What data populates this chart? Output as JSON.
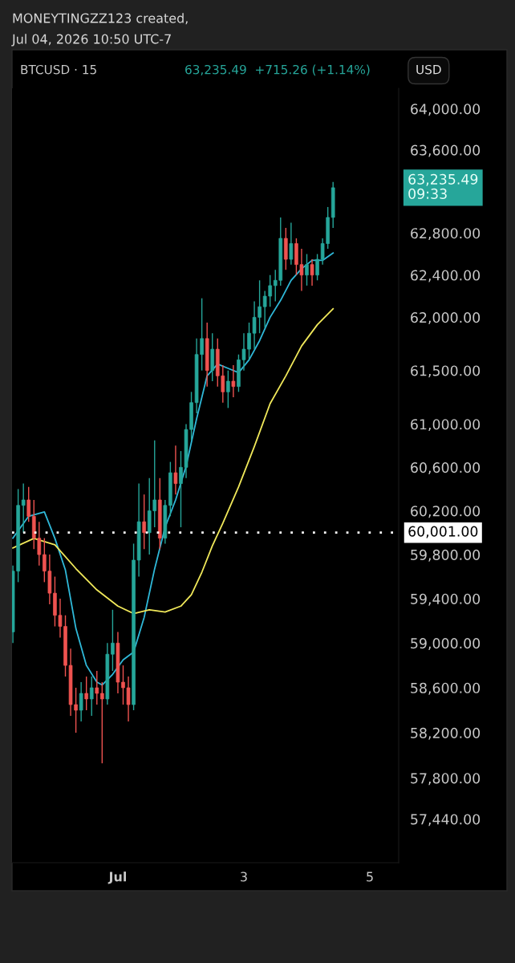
{
  "chart_data": {
    "type": "candlestick",
    "title": "MONEYTINGZZ123 created,",
    "subtitle": "Jul 04, 2026 10:50 UTC-7",
    "annotations": [
      "BTCUSD · 15",
      "63,235.49  +715.26 (+1.14%)",
      "USD",
      "63,235.49\n09:33"
    ],
    "x": [
      "2026-06-29T08:00",
      "2026-06-29T10:00",
      "2026-06-29T12:00",
      "2026-06-29T14:00",
      "2026-06-29T16:00",
      "2026-06-29T18:00",
      "2026-06-29T20:00",
      "2026-06-29T22:00",
      "2026-06-30T00:00",
      "2026-06-30T02:00",
      "2026-06-30T04:00",
      "2026-06-30T06:00",
      "2026-06-30T08:00",
      "2026-06-30T10:00",
      "2026-06-30T12:00",
      "2026-06-30T14:00",
      "2026-06-30T16:00",
      "2026-06-30T18:00",
      "2026-06-30T20:00",
      "2026-06-30T22:00",
      "2026-07-01T00:00",
      "2026-07-01T02:00",
      "2026-07-01T04:00",
      "2026-07-01T06:00",
      "2026-07-01T08:00",
      "2026-07-01T10:00",
      "2026-07-01T12:00",
      "2026-07-01T14:00",
      "2026-07-01T16:00",
      "2026-07-01T18:00",
      "2026-07-01T20:00",
      "2026-07-01T22:00",
      "2026-07-02T00:00",
      "2026-07-02T02:00",
      "2026-07-02T04:00",
      "2026-07-02T06:00",
      "2026-07-02T08:00",
      "2026-07-02T10:00",
      "2026-07-02T12:00",
      "2026-07-02T14:00",
      "2026-07-02T16:00",
      "2026-07-02T18:00",
      "2026-07-02T20:00",
      "2026-07-02T22:00",
      "2026-07-03T00:00",
      "2026-07-03T02:00",
      "2026-07-03T04:00",
      "2026-07-03T06:00",
      "2026-07-03T08:00",
      "2026-07-03T10:00",
      "2026-07-03T12:00",
      "2026-07-03T14:00",
      "2026-07-03T16:00",
      "2026-07-03T18:00",
      "2026-07-03T20:00",
      "2026-07-03T22:00",
      "2026-07-04T00:00",
      "2026-07-04T02:00",
      "2026-07-04T04:00",
      "2026-07-04T06:00",
      "2026-07-04T08:00",
      "2026-07-04T10:00"
    ],
    "ohlc": [
      [
        59100,
        59700,
        59000,
        59650
      ],
      [
        59650,
        60400,
        59550,
        60250
      ],
      [
        60250,
        60450,
        60000,
        60300
      ],
      [
        60300,
        60420,
        60100,
        60150
      ],
      [
        60150,
        60300,
        59850,
        59950
      ],
      [
        59950,
        60100,
        59700,
        59800
      ],
      [
        59800,
        59950,
        59550,
        59650
      ],
      [
        59650,
        59800,
        59350,
        59450
      ],
      [
        59450,
        59600,
        59150,
        59250
      ],
      [
        59250,
        59400,
        59050,
        59150
      ],
      [
        59150,
        59250,
        58700,
        58800
      ],
      [
        58800,
        58950,
        58350,
        58450
      ],
      [
        58450,
        58600,
        58200,
        58400
      ],
      [
        58400,
        58650,
        58300,
        58550
      ],
      [
        58550,
        58700,
        58400,
        58500
      ],
      [
        58500,
        58700,
        58350,
        58600
      ],
      [
        58600,
        58750,
        58450,
        58550
      ],
      [
        58550,
        58650,
        57930,
        58500
      ],
      [
        58500,
        59000,
        58450,
        58900
      ],
      [
        58900,
        59300,
        58750,
        59000
      ],
      [
        59000,
        59100,
        58550,
        58650
      ],
      [
        58650,
        58800,
        58450,
        58600
      ],
      [
        58600,
        58700,
        58300,
        58450
      ],
      [
        58450,
        59900,
        58400,
        59750
      ],
      [
        59750,
        60450,
        59600,
        60100
      ],
      [
        60100,
        60350,
        59850,
        60000
      ],
      [
        60000,
        60500,
        59800,
        60200
      ],
      [
        60200,
        60850,
        60050,
        60300
      ],
      [
        60300,
        60500,
        59850,
        59950
      ],
      [
        59950,
        60300,
        59900,
        60250
      ],
      [
        60250,
        60650,
        60150,
        60550
      ],
      [
        60550,
        60800,
        60350,
        60450
      ],
      [
        60450,
        60750,
        60050,
        60600
      ],
      [
        60600,
        61000,
        60500,
        60950
      ],
      [
        60950,
        61300,
        60850,
        61200
      ],
      [
        61200,
        61800,
        61100,
        61650
      ],
      [
        61650,
        62180,
        61500,
        61800
      ],
      [
        61800,
        61950,
        61350,
        61500
      ],
      [
        61500,
        61850,
        61400,
        61700
      ],
      [
        61700,
        61800,
        61350,
        61450
      ],
      [
        61450,
        61550,
        61200,
        61300
      ],
      [
        61300,
        61500,
        61150,
        61400
      ],
      [
        61400,
        61550,
        61250,
        61350
      ],
      [
        61350,
        61650,
        61300,
        61600
      ],
      [
        61600,
        61850,
        61500,
        61700
      ],
      [
        61700,
        61950,
        61600,
        61850
      ],
      [
        61850,
        62150,
        61700,
        62000
      ],
      [
        62000,
        62350,
        61850,
        62100
      ],
      [
        62100,
        62250,
        61900,
        62200
      ],
      [
        62200,
        62400,
        62100,
        62300
      ],
      [
        62300,
        62450,
        62150,
        62350
      ],
      [
        62350,
        62950,
        62300,
        62750
      ],
      [
        62750,
        62850,
        62450,
        62550
      ],
      [
        62550,
        62900,
        62500,
        62700
      ],
      [
        62700,
        62750,
        62400,
        62500
      ],
      [
        62500,
        62650,
        62250,
        62400
      ],
      [
        62400,
        62600,
        62300,
        62500
      ],
      [
        62500,
        62550,
        62300,
        62400
      ],
      [
        62400,
        62600,
        62350,
        62550
      ],
      [
        62550,
        62750,
        62500,
        62700
      ],
      [
        62700,
        63050,
        62650,
        62950
      ],
      [
        62950,
        63290,
        62850,
        63235.49
      ]
    ],
    "colors": [
      "#26a69a",
      "#26a69a",
      "#26a69a",
      "#ef5350",
      "#ef5350",
      "#ef5350",
      "#ef5350",
      "#ef5350",
      "#ef5350",
      "#ef5350",
      "#ef5350",
      "#ef5350",
      "#ef5350",
      "#26a69a",
      "#ef5350",
      "#26a69a",
      "#ef5350",
      "#ef5350",
      "#26a69a",
      "#26a69a",
      "#ef5350",
      "#ef5350",
      "#ef5350",
      "#26a69a",
      "#26a69a",
      "#ef5350",
      "#26a69a",
      "#26a69a",
      "#ef5350",
      "#26a69a",
      "#26a69a",
      "#ef5350",
      "#26a69a",
      "#26a69a",
      "#26a69a",
      "#26a69a",
      "#26a69a",
      "#ef5350",
      "#26a69a",
      "#ef5350",
      "#ef5350",
      "#26a69a",
      "#ef5350",
      "#26a69a",
      "#26a69a",
      "#26a69a",
      "#26a69a",
      "#26a69a",
      "#26a69a",
      "#26a69a",
      "#26a69a",
      "#26a69a",
      "#ef5350",
      "#26a69a",
      "#ef5350",
      "#ef5350",
      "#26a69a",
      "#ef5350",
      "#26a69a",
      "#26a69a",
      "#26a69a",
      "#26a69a"
    ],
    "series": [
      {
        "type": "line",
        "color": "#2fb8d8",
        "x": [
          "2026-06-29T08:00",
          "2026-06-29T14:00",
          "2026-06-29T20:00",
          "2026-06-30T00:00",
          "2026-06-30T04:00",
          "2026-06-30T08:00",
          "2026-06-30T12:00",
          "2026-06-30T16:00",
          "2026-06-30T18:00",
          "2026-06-30T22:00",
          "2026-07-01T02:00",
          "2026-07-01T06:00",
          "2026-07-01T10:00",
          "2026-07-01T14:00",
          "2026-07-01T18:00",
          "2026-07-01T22:00",
          "2026-07-02T02:00",
          "2026-07-02T06:00",
          "2026-07-02T10:00",
          "2026-07-02T14:00",
          "2026-07-02T18:00",
          "2026-07-02T22:00",
          "2026-07-03T02:00",
          "2026-07-03T06:00",
          "2026-07-03T10:00",
          "2026-07-03T14:00",
          "2026-07-03T18:00",
          "2026-07-03T22:00",
          "2026-07-04T02:00",
          "2026-07-04T06:00",
          "2026-07-04T10:00"
        ],
        "values": [
          59950,
          60150,
          60190,
          59948,
          59660,
          59132,
          58800,
          58650,
          58625,
          58720,
          58850,
          58920,
          59230,
          59670,
          60050,
          60300,
          60610,
          61050,
          61450,
          61560,
          61520,
          61480,
          61600,
          61780,
          62000,
          62160,
          62350,
          62460,
          62540,
          62540,
          62610
        ]
      },
      {
        "type": "line",
        "color": "#f0e85a",
        "x": [
          "2026-06-29T08:00",
          "2026-06-29T16:00",
          "2026-06-30T00:00",
          "2026-06-30T08:00",
          "2026-06-30T16:00",
          "2026-07-01T00:00",
          "2026-07-01T06:00",
          "2026-07-01T12:00",
          "2026-07-01T18:00",
          "2026-07-02T00:00",
          "2026-07-02T04:00",
          "2026-07-02T08:00",
          "2026-07-02T12:00",
          "2026-07-02T16:00",
          "2026-07-02T22:00",
          "2026-07-03T04:00",
          "2026-07-03T10:00",
          "2026-07-03T16:00",
          "2026-07-03T22:00",
          "2026-07-04T04:00",
          "2026-07-04T10:00"
        ],
        "values": [
          59860,
          59948,
          59890,
          59673,
          59480,
          59333,
          59266,
          59300,
          59280,
          59333,
          59435,
          59640,
          59880,
          60087,
          60420,
          60792,
          61190,
          61450,
          61730,
          61930,
          62080
        ]
      }
    ],
    "ref_lines": [
      {
        "axis": "y",
        "value": 60001,
        "label": "60,001.00",
        "color": "#ffffff",
        "line_style": "dotted"
      }
    ],
    "log": true,
    "xlim": [
      "2026-06-29T07:40",
      "2026-07-05T11:00"
    ],
    "xticks": [
      {
        "value": "2026-07-01",
        "label": "Jul"
      },
      {
        "value": "2026-07-03",
        "label": "3"
      },
      {
        "value": "2026-07-05",
        "label": "5"
      }
    ],
    "ylim": [
      57060,
      64200
    ],
    "yticks": [
      {
        "value": 64000,
        "label": "64,000.00"
      },
      {
        "value": 63600,
        "label": "63,600.00"
      },
      {
        "value": 62800,
        "label": "62,800.00"
      },
      {
        "value": 62400,
        "label": "62,400.00"
      },
      {
        "value": 62000,
        "label": "62,000.00"
      },
      {
        "value": 61500,
        "label": "61,500.00"
      },
      {
        "value": 61000,
        "label": "61,000.00"
      },
      {
        "value": 60600,
        "label": "60,600.00"
      },
      {
        "value": 60200,
        "label": "60,200.00"
      },
      {
        "value": 59800,
        "label": "59,800.00"
      },
      {
        "value": 59400,
        "label": "59,400.00"
      },
      {
        "value": 59000,
        "label": "59,000.00"
      },
      {
        "value": 58600,
        "label": "58,600.00"
      },
      {
        "value": 58200,
        "label": "58,200.00"
      },
      {
        "value": 57800,
        "label": "57,800.00"
      },
      {
        "value": 57440,
        "label": "57,440.00"
      }
    ],
    "grid": false
  }
}
